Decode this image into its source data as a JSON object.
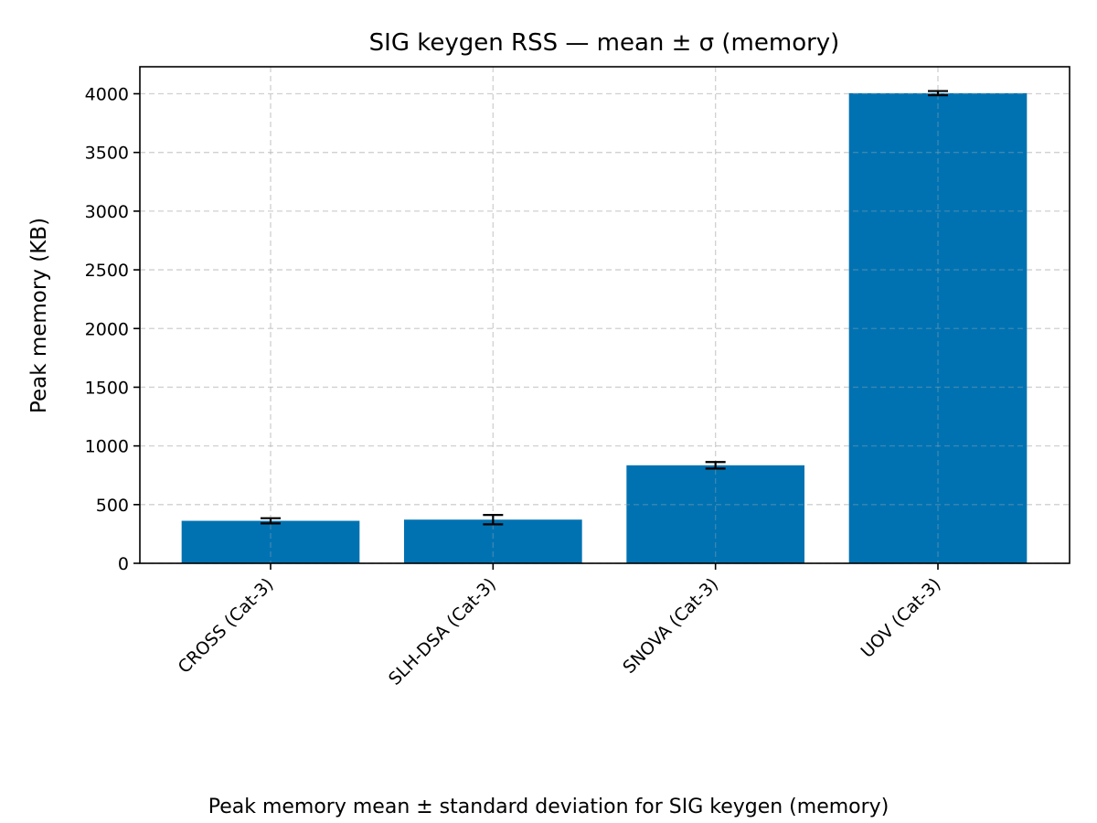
{
  "chart_data": {
    "type": "bar",
    "title": "SIG keygen RSS — mean ± σ (memory)",
    "ylabel": "Peak memory (KB)",
    "xlabel": "",
    "caption": "Peak memory mean ± standard deviation for SIG keygen (memory)",
    "categories": [
      "CROSS (Cat-3)",
      "SLH-DSA (Cat-3)",
      "SNOVA (Cat-3)",
      "UOV (Cat-3)"
    ],
    "values": [
      362,
      372,
      835,
      4005
    ],
    "errors": [
      22,
      40,
      28,
      18
    ],
    "ylim": [
      0,
      4230
    ],
    "yticks": [
      0,
      500,
      1000,
      1500,
      2000,
      2500,
      3000,
      3500,
      4000
    ],
    "grid": true,
    "bar_color": "#0072b2"
  }
}
